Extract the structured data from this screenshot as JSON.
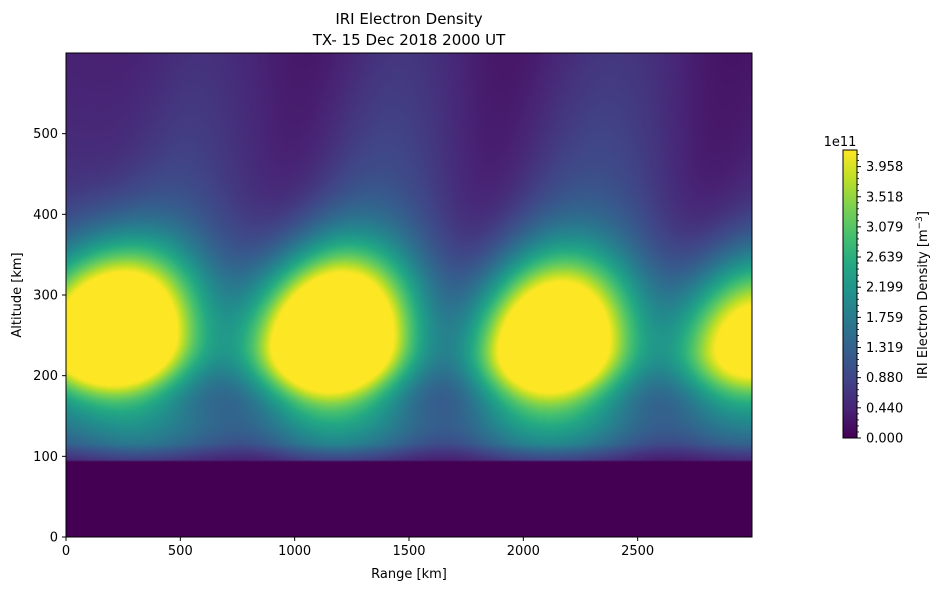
{
  "chart_data": {
    "type": "heatmap",
    "title": "IRI Electron Density",
    "subtitle": "TX- 15 Dec 2018 2000 UT",
    "xlabel": "Range [km]",
    "ylabel": "Altitude [km]",
    "xlim": [
      0,
      3000
    ],
    "ylim": [
      0,
      600
    ],
    "xticks": [
      0,
      500,
      1000,
      1500,
      2000,
      2500
    ],
    "yticks": [
      0,
      100,
      200,
      300,
      400,
      500
    ],
    "colormap": "viridis",
    "colorbar": {
      "label_text": "IRI Electron Density [m",
      "label_exponent": "−3",
      "label_close": "]",
      "offset_text": "1e11",
      "range": [
        0.0,
        4.2
      ],
      "ticks": [
        0.0,
        0.44,
        0.88,
        1.319,
        1.759,
        2.199,
        2.639,
        3.079,
        3.518,
        3.958
      ],
      "tick_labels": [
        "0.000",
        "0.440",
        "0.880",
        "1.319",
        "1.759",
        "2.199",
        "2.639",
        "3.079",
        "3.518",
        "3.958"
      ]
    },
    "field": {
      "floor_altitude": 95,
      "floor_value": 0.0,
      "f_peaks": [
        {
          "range": 200,
          "altitude": 245,
          "peak": 6.5
        },
        {
          "range": 1150,
          "altitude": 240,
          "peak": 6.5
        },
        {
          "range": 2120,
          "altitude": 235,
          "peak": 5.6
        },
        {
          "range": 3000,
          "altitude": 235,
          "peak": 4.6
        }
      ],
      "bright_streaks_center_range": [
        300,
        1250,
        2200
      ],
      "dark_streaks_center_range": [
        150,
        900,
        1750,
        2700
      ]
    }
  }
}
